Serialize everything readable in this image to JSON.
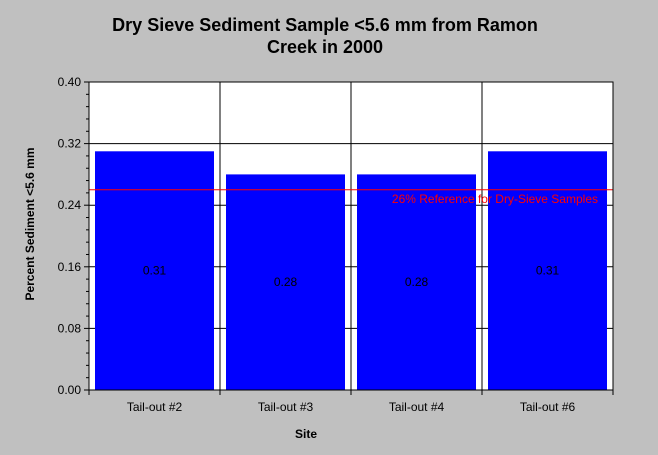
{
  "chart_data": {
    "type": "bar",
    "title_lines": [
      "Dry Sieve Sediment Sample <5.6 mm from Ramon",
      "Creek in 2000"
    ],
    "xlabel": "Site",
    "ylabel": "Percent Sediment <5.6 mm",
    "categories": [
      "Tail-out #2",
      "Tail-out #3",
      "Tail-out #4",
      "Tail-out #6"
    ],
    "values": [
      0.31,
      0.28,
      0.28,
      0.31
    ],
    "data_labels": [
      "0.31",
      "0.28",
      "0.28",
      "0.31"
    ],
    "ylim": [
      0,
      0.4
    ],
    "yticks": [
      "0.00",
      "0.08",
      "0.16",
      "0.24",
      "0.32",
      "0.40"
    ],
    "grid": true,
    "reference_line": {
      "value": 0.26,
      "label": "26% Reference for Dry-Sieve Samples",
      "color": "#ff0000"
    },
    "bar_color": "#0000ff"
  }
}
